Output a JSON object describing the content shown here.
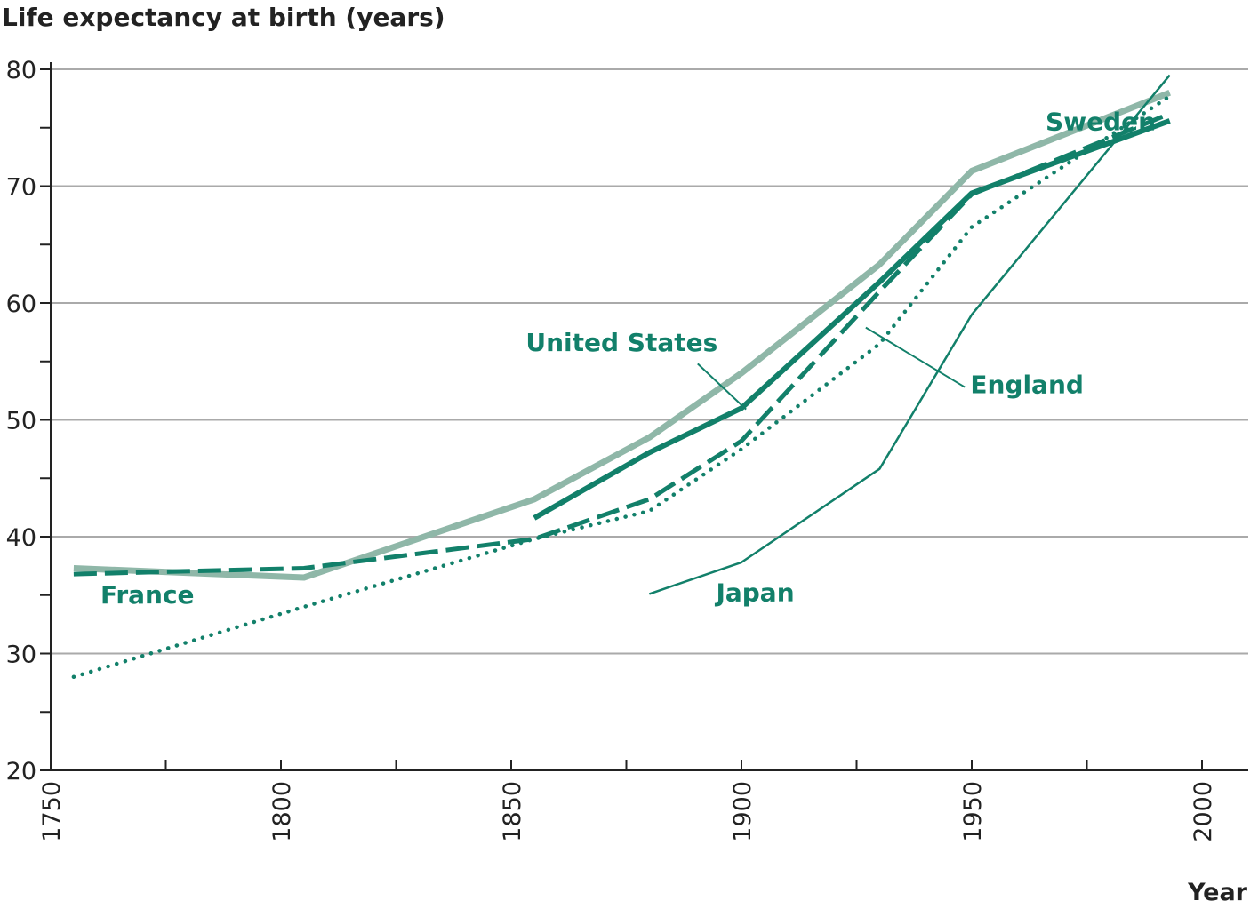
{
  "chart_data": {
    "type": "line",
    "title": "Life expectancy at birth (years)",
    "xlabel": "Year",
    "ylabel": "",
    "xlim": [
      1750,
      2010
    ],
    "ylim": [
      20,
      80
    ],
    "x_ticks": [
      1750,
      1800,
      1850,
      1900,
      1950,
      2000
    ],
    "x_minor_ticks": [
      1775,
      1825,
      1875,
      1925,
      1975
    ],
    "y_ticks": [
      20,
      30,
      40,
      50,
      60,
      70,
      80
    ],
    "y_minor_ticks": [
      25,
      35,
      45,
      55,
      65,
      75
    ],
    "x_tick_labels": [
      "1750",
      "1800",
      "1850",
      "1900",
      "1950",
      "2000"
    ],
    "y_tick_labels": [
      "20",
      "30",
      "40",
      "50",
      "60",
      "70",
      "80"
    ],
    "grid": "horizontal",
    "legend": "direct labels on lines",
    "colors": {
      "dark_green": "#12806a",
      "light_green": "#8fb7a8",
      "axis": "#222222",
      "grid": "#aaaaaa"
    },
    "series": [
      {
        "name": "Sweden",
        "style": "solid-thick-light",
        "points": [
          [
            1755,
            37.3
          ],
          [
            1805,
            36.5
          ],
          [
            1855,
            43.2
          ],
          [
            1880,
            48.5
          ],
          [
            1900,
            54.0
          ],
          [
            1930,
            63.3
          ],
          [
            1950,
            71.3
          ],
          [
            1993,
            78.0
          ]
        ]
      },
      {
        "name": "United States",
        "style": "solid-thick-dark",
        "points": [
          [
            1855,
            41.6
          ],
          [
            1880,
            47.2
          ],
          [
            1900,
            51.0
          ],
          [
            1930,
            61.8
          ],
          [
            1950,
            69.4
          ],
          [
            1993,
            75.6
          ]
        ]
      },
      {
        "name": "England",
        "style": "dashed",
        "points": [
          [
            1755,
            36.8
          ],
          [
            1805,
            37.3
          ],
          [
            1855,
            39.8
          ],
          [
            1880,
            43.2
          ],
          [
            1900,
            48.2
          ],
          [
            1930,
            61.0
          ],
          [
            1950,
            69.3
          ],
          [
            1993,
            76.2
          ]
        ]
      },
      {
        "name": "France",
        "style": "dotted",
        "points": [
          [
            1755,
            28.0
          ],
          [
            1805,
            34.0
          ],
          [
            1855,
            39.8
          ],
          [
            1880,
            42.2
          ],
          [
            1900,
            47.5
          ],
          [
            1930,
            56.5
          ],
          [
            1950,
            66.5
          ],
          [
            1993,
            77.7
          ]
        ]
      },
      {
        "name": "Japan",
        "style": "solid-thin",
        "points": [
          [
            1880,
            35.1
          ],
          [
            1900,
            37.8
          ],
          [
            1930,
            45.8
          ],
          [
            1950,
            59.0
          ],
          [
            1993,
            79.5
          ]
        ]
      }
    ],
    "annotations": [
      {
        "text": "Sweden",
        "series": "Sweden"
      },
      {
        "text": "United States",
        "series": "United States"
      },
      {
        "text": "England",
        "series": "England"
      },
      {
        "text": "France",
        "series": "France"
      },
      {
        "text": "Japan",
        "series": "Japan"
      }
    ]
  }
}
